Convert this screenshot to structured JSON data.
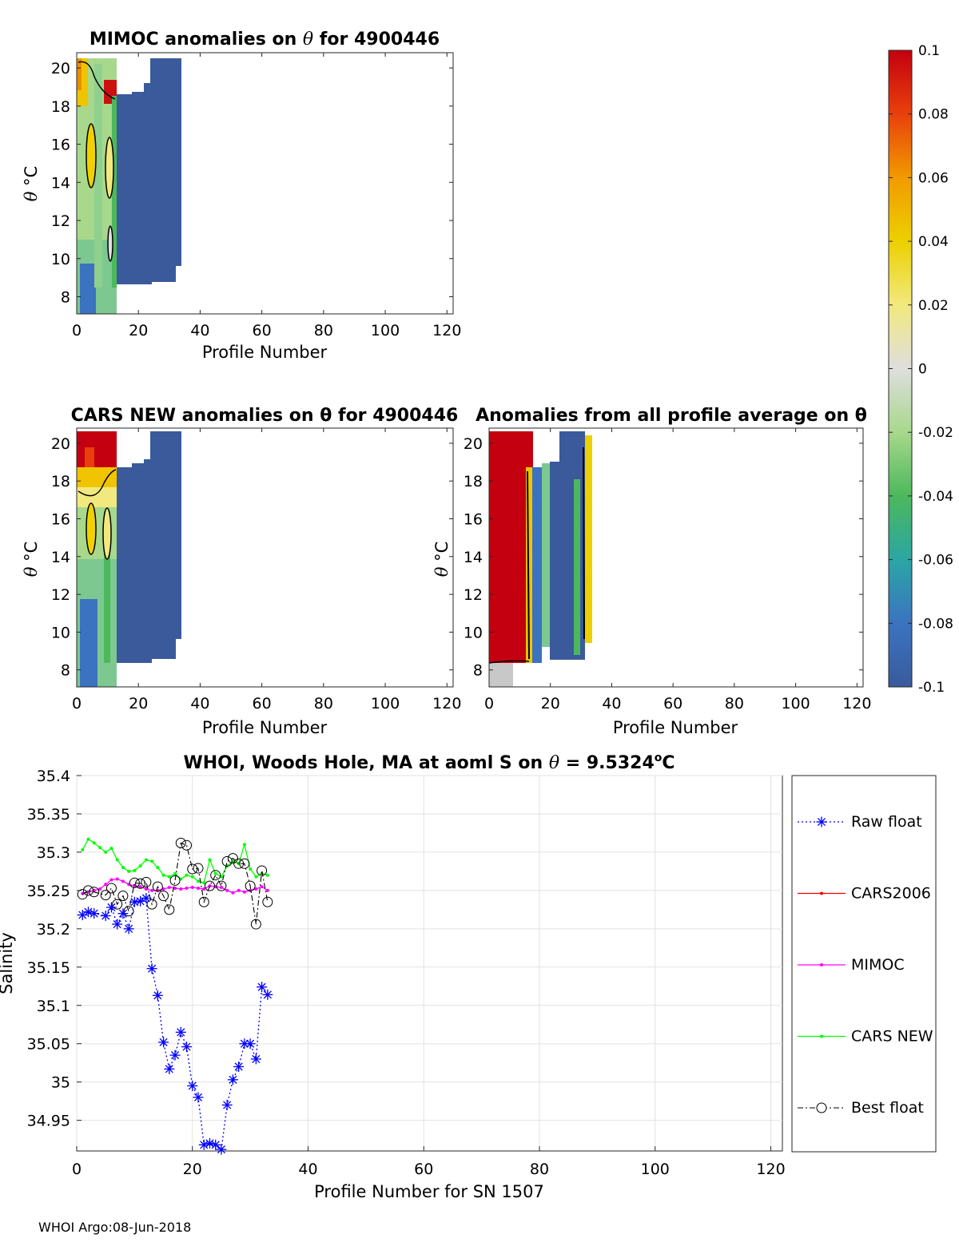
{
  "colors": {
    "dark_blue": "#3a5a9c",
    "red": "#c40010",
    "raw_float": "#0000ff",
    "cars2006": "#ff0000",
    "mimoc": "#ff00ff",
    "cars_new": "#00ff00",
    "best_float": "#000000"
  },
  "panels": {
    "mimoc": {
      "title_prefix": "MIMOC anomalies on ",
      "theta": "θ",
      "title_suffix": "  for 4900446",
      "ylabel_theta": "θ",
      "ylabel_unit": "°C",
      "xlabel": "Profile Number"
    },
    "cars_new": {
      "title": "CARS NEW anomalies on θ for 4900446",
      "ylabel_theta": "θ",
      "ylabel_unit": "°C",
      "xlabel": "Profile Number"
    },
    "profile_avg": {
      "title": "Anomalies from all profile average on θ",
      "ylabel_theta": "θ",
      "ylabel_unit": "°C",
      "xlabel": "Profile Number"
    },
    "salinity": {
      "title_prefix": "WHOI, Woods Hole, MA at aoml S on ",
      "theta": "θ",
      "title_value": " = 9.5324",
      "title_unit_sup": "o",
      "title_unit": "C",
      "xlabel": "Profile Number for SN 1507",
      "ylabel": "Salinity"
    }
  },
  "anomaly_axes": {
    "x_ticks": [
      "0",
      "20",
      "40",
      "60",
      "80",
      "100",
      "120"
    ],
    "y_ticks": [
      "8",
      "10",
      "12",
      "14",
      "16",
      "18",
      "20"
    ],
    "xlim": [
      0,
      122
    ],
    "ylim": [
      7.1,
      20.8
    ]
  },
  "colorbar": {
    "ticks": [
      "0.1",
      "0.08",
      "0.06",
      "0.04",
      "0.02",
      "0",
      "-0.02",
      "-0.04",
      "-0.06",
      "-0.08",
      "-0.1"
    ],
    "range": [
      -0.1,
      0.1
    ]
  },
  "legend": {
    "items": [
      "Raw float",
      "CARS2006",
      "MIMOC",
      "CARS NEW",
      "Best float"
    ]
  },
  "footer": "WHOI Argo:08-Jun-2018",
  "chart_data": {
    "type": "line",
    "title": "WHOI, Woods Hole, MA at aoml S on θ = 9.5324°C",
    "xlabel": "Profile Number for SN 1507",
    "ylabel": "Salinity",
    "xlim": [
      0,
      122
    ],
    "ylim": [
      34.91,
      35.4
    ],
    "x_ticks": [
      0,
      20,
      40,
      60,
      80,
      100,
      120
    ],
    "y_ticks": [
      35.4,
      35.35,
      35.3,
      35.25,
      35.2,
      35.15,
      35.1,
      35.05,
      35,
      34.95
    ],
    "y_tick_labels": [
      "35.4",
      "35.35",
      "35.3",
      "35.25",
      "35.2",
      "35.15",
      "35.1",
      "35.05",
      "35",
      "34.95"
    ],
    "grid": true,
    "legend_position": "outside-right",
    "series": [
      {
        "name": "Raw float",
        "x": [
          1,
          2,
          3,
          5,
          6,
          7,
          8,
          9,
          10,
          11,
          12,
          13,
          14,
          15,
          16,
          17,
          18,
          19,
          20,
          21,
          22,
          23,
          24,
          25,
          26,
          27,
          28,
          29,
          30,
          31,
          32,
          33
        ],
        "y": [
          35.218,
          35.222,
          35.22,
          35.217,
          35.228,
          35.206,
          35.22,
          35.2,
          35.235,
          35.236,
          35.24,
          35.148,
          35.113,
          35.052,
          35.017,
          35.035,
          35.065,
          35.046,
          34.995,
          34.98,
          34.918,
          34.92,
          34.918,
          34.912,
          34.97,
          35.003,
          35.02,
          35.05,
          35.05,
          35.03,
          35.124,
          35.114
        ]
      },
      {
        "name": "CARS2006",
        "x": [],
        "y": []
      },
      {
        "name": "MIMOC",
        "x": [
          1,
          2,
          3,
          4,
          5,
          6,
          7,
          8,
          9,
          10,
          11,
          12,
          13,
          14,
          15,
          16,
          17,
          18,
          19,
          20,
          21,
          22,
          23,
          24,
          25,
          26,
          27,
          28,
          29,
          30,
          31,
          32,
          33
        ],
        "y": [
          35.246,
          35.248,
          35.25,
          35.252,
          35.258,
          35.264,
          35.265,
          35.262,
          35.258,
          35.256,
          35.255,
          35.252,
          35.25,
          35.25,
          35.252,
          35.254,
          35.253,
          35.252,
          35.253,
          35.254,
          35.253,
          35.252,
          35.256,
          35.255,
          35.254,
          35.25,
          35.247,
          35.25,
          35.248,
          35.25,
          35.252,
          35.255,
          35.25
        ]
      },
      {
        "name": "CARS NEW",
        "x": [
          1,
          2,
          3,
          4,
          5,
          6,
          7,
          8,
          9,
          10,
          11,
          12,
          13,
          14,
          15,
          16,
          17,
          18,
          19,
          20,
          21,
          22,
          23,
          24,
          25,
          26,
          27,
          28,
          29,
          30,
          31,
          32,
          33
        ],
        "y": [
          35.303,
          35.317,
          35.312,
          35.306,
          35.3,
          35.305,
          35.29,
          35.28,
          35.275,
          35.276,
          35.282,
          35.29,
          35.288,
          35.28,
          35.27,
          35.268,
          35.272,
          35.265,
          35.27,
          35.268,
          35.262,
          35.26,
          35.29,
          35.272,
          35.268,
          35.282,
          35.288,
          35.285,
          35.31,
          35.278,
          35.268,
          35.272,
          35.27
        ]
      },
      {
        "name": "Best float",
        "x": [
          1,
          2,
          3,
          5,
          6,
          7,
          8,
          9,
          10,
          11,
          12,
          13,
          14,
          15,
          16,
          17,
          18,
          19,
          20,
          21,
          22,
          23,
          24,
          25,
          26,
          27,
          28,
          29,
          30,
          31,
          32,
          33
        ],
        "y": [
          35.245,
          35.25,
          35.248,
          35.244,
          35.253,
          35.232,
          35.243,
          35.223,
          35.26,
          35.259,
          35.261,
          35.232,
          35.255,
          35.243,
          35.225,
          35.263,
          35.312,
          35.309,
          35.278,
          35.279,
          35.235,
          35.256,
          35.27,
          35.256,
          35.288,
          35.292,
          35.285,
          35.285,
          35.256,
          35.206,
          35.276,
          35.235
        ]
      }
    ]
  }
}
